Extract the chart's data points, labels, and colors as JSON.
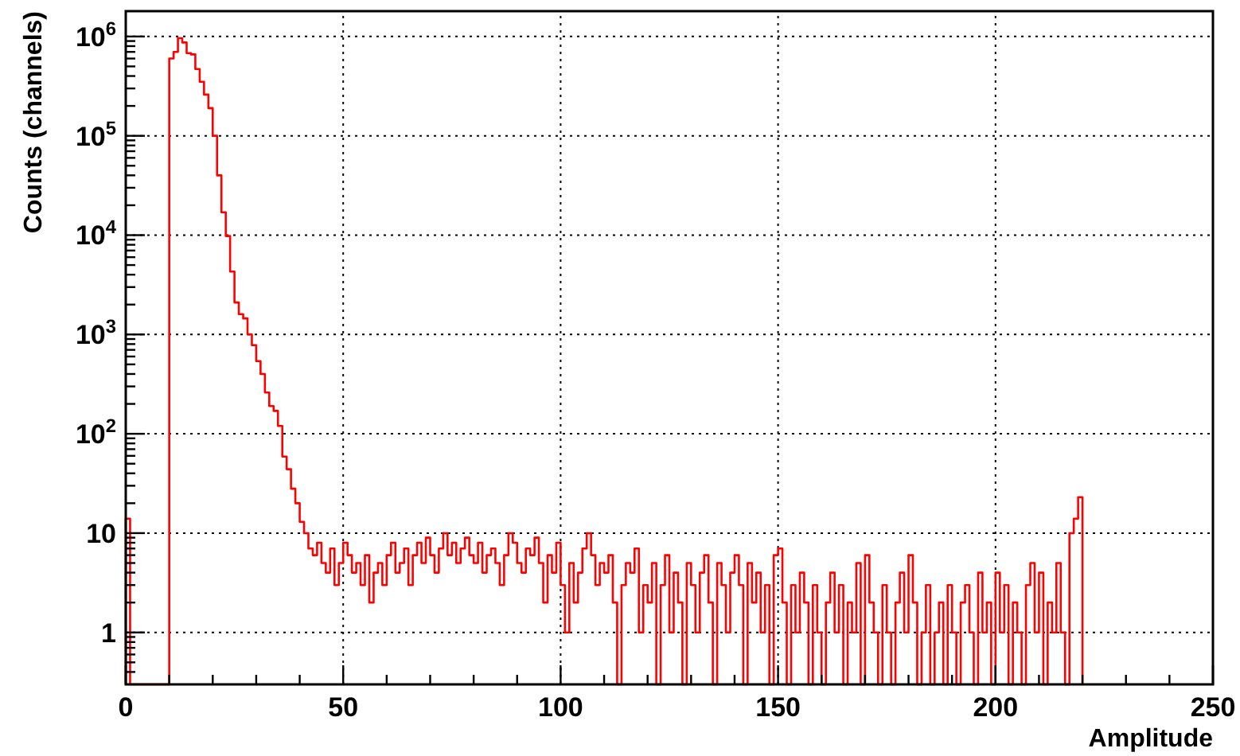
{
  "chart_data": {
    "type": "histogram",
    "xlabel": "Amplitude",
    "ylabel": "Counts (channels)",
    "color": "#ff0000",
    "log": "y",
    "grid": true,
    "xlim": [
      0,
      250
    ],
    "ylim": [
      0.3,
      1800000
    ],
    "xticks": [
      0,
      {
        "value": 10,
        "label": null
      },
      {
        "value": 20,
        "label": null
      },
      {
        "value": 30,
        "label": null
      },
      {
        "value": 40,
        "label": null
      },
      50,
      {
        "value": 60,
        "label": null
      },
      {
        "value": 70,
        "label": null
      },
      {
        "value": 80,
        "label": null
      },
      {
        "value": 90,
        "label": null
      },
      100,
      {
        "value": 110,
        "label": null
      },
      {
        "value": 120,
        "label": null
      },
      {
        "value": 130,
        "label": null
      },
      {
        "value": 140,
        "label": null
      },
      150,
      {
        "value": 160,
        "label": null
      },
      {
        "value": 170,
        "label": null
      },
      {
        "value": 180,
        "label": null
      },
      {
        "value": 190,
        "label": null
      },
      200,
      {
        "value": 210,
        "label": null
      },
      {
        "value": 220,
        "label": null
      },
      {
        "value": 230,
        "label": null
      },
      {
        "value": 240,
        "label": null
      },
      250
    ],
    "yticks": [
      {
        "value": 0.4,
        "label": null
      },
      {
        "value": 0.5,
        "label": null
      },
      {
        "value": 0.6,
        "label": null
      },
      {
        "value": 0.7,
        "label": null
      },
      {
        "value": 0.8,
        "label": null
      },
      {
        "value": 0.9,
        "label": null
      },
      1,
      {
        "value": 2,
        "label": null
      },
      {
        "value": 3,
        "label": null
      },
      {
        "value": 4,
        "label": null
      },
      {
        "value": 5,
        "label": null
      },
      {
        "value": 6,
        "label": null
      },
      {
        "value": 7,
        "label": null
      },
      {
        "value": 8,
        "label": null
      },
      {
        "value": 9,
        "label": null
      },
      10,
      {
        "value": 20,
        "label": null
      },
      {
        "value": 30,
        "label": null
      },
      {
        "value": 40,
        "label": null
      },
      {
        "value": 50,
        "label": null
      },
      {
        "value": 60,
        "label": null
      },
      {
        "value": 70,
        "label": null
      },
      {
        "value": 80,
        "label": null
      },
      {
        "value": 90,
        "label": null
      },
      {
        "value": 100,
        "label": "10$^{2}$"
      },
      {
        "value": 200,
        "label": null
      },
      {
        "value": 300,
        "label": null
      },
      {
        "value": 400,
        "label": null
      },
      {
        "value": 500,
        "label": null
      },
      {
        "value": 600,
        "label": null
      },
      {
        "value": 700,
        "label": null
      },
      {
        "value": 800,
        "label": null
      },
      {
        "value": 900,
        "label": null
      },
      {
        "value": 1000,
        "label": "10$^{3}$"
      },
      {
        "value": 2000,
        "label": null
      },
      {
        "value": 3000,
        "label": null
      },
      {
        "value": 4000,
        "label": null
      },
      {
        "value": 5000,
        "label": null
      },
      {
        "value": 6000,
        "label": null
      },
      {
        "value": 7000,
        "label": null
      },
      {
        "value": 8000,
        "label": null
      },
      {
        "value": 9000,
        "label": null
      },
      {
        "value": 10000,
        "label": "10$^{4}$"
      },
      {
        "value": 20000,
        "label": null
      },
      {
        "value": 30000,
        "label": null
      },
      {
        "value": 40000,
        "label": null
      },
      {
        "value": 50000,
        "label": null
      },
      {
        "value": 60000,
        "label": null
      },
      {
        "value": 70000,
        "label": null
      },
      {
        "value": 80000,
        "label": null
      },
      {
        "value": 90000,
        "label": null
      },
      {
        "value": 100000,
        "label": "10$^{5}$"
      },
      {
        "value": 200000,
        "label": null
      },
      {
        "value": 300000,
        "label": null
      },
      {
        "value": 400000,
        "label": null
      },
      {
        "value": 500000,
        "label": null
      },
      {
        "value": 600000,
        "label": null
      },
      {
        "value": 700000,
        "label": null
      },
      {
        "value": 800000,
        "label": null
      },
      {
        "value": 900000,
        "label": null
      },
      {
        "value": 1000000,
        "label": "10$^{6}$"
      }
    ],
    "bins": [
      0,
      1,
      2,
      3,
      4,
      5,
      6,
      7,
      8,
      9,
      10,
      11,
      12,
      13,
      14,
      15,
      16,
      17,
      18,
      19,
      20,
      21,
      22,
      23,
      24,
      25,
      26,
      27,
      28,
      29,
      30,
      31,
      32,
      33,
      34,
      35,
      36,
      37,
      38,
      39,
      40,
      41,
      42,
      43,
      44,
      45,
      46,
      47,
      48,
      49,
      50,
      51,
      52,
      53,
      54,
      55,
      56,
      57,
      58,
      59,
      60,
      61,
      62,
      63,
      64,
      65,
      66,
      67,
      68,
      69,
      70,
      71,
      72,
      73,
      74,
      75,
      76,
      77,
      78,
      79,
      80,
      81,
      82,
      83,
      84,
      85,
      86,
      87,
      88,
      89,
      90,
      91,
      92,
      93,
      94,
      95,
      96,
      97,
      98,
      99,
      100,
      101,
      102,
      103,
      104,
      105,
      106,
      107,
      108,
      109,
      110,
      111,
      112,
      113,
      114,
      115,
      116,
      117,
      118,
      119,
      120,
      121,
      122,
      123,
      124,
      125,
      126,
      127,
      128,
      129,
      130,
      131,
      132,
      133,
      134,
      135,
      136,
      137,
      138,
      139,
      140,
      141,
      142,
      143,
      144,
      145,
      146,
      147,
      148,
      149,
      150,
      151,
      152,
      153,
      154,
      155,
      156,
      157,
      158,
      159,
      160,
      161,
      162,
      163,
      164,
      165,
      166,
      167,
      168,
      169,
      170,
      171,
      172,
      173,
      174,
      175,
      176,
      177,
      178,
      179,
      180,
      181,
      182,
      183,
      184,
      185,
      186,
      187,
      188,
      189,
      190,
      191,
      192,
      193,
      194,
      195,
      196,
      197,
      198,
      199,
      200,
      201,
      202,
      203,
      204,
      205,
      206,
      207,
      208,
      209,
      210,
      211,
      212,
      213,
      214,
      215,
      216,
      217,
      218,
      219,
      220
    ],
    "values": [
      14,
      null,
      null,
      null,
      null,
      null,
      null,
      null,
      null,
      null,
      600000,
      700000,
      960000,
      870000,
      680000,
      660000,
      470000,
      350000,
      260000,
      190000,
      100000,
      40000,
      17000,
      9800,
      4300,
      2100,
      1600,
      1450,
      1000,
      780,
      540,
      400,
      260,
      190,
      170,
      120,
      59,
      44,
      28,
      20,
      13,
      10,
      7,
      6,
      8,
      5,
      4,
      7,
      3,
      5,
      8,
      6,
      4,
      5,
      3,
      6,
      2,
      4,
      5,
      3,
      6,
      8,
      4,
      5,
      7,
      3,
      6,
      8,
      5,
      9,
      6,
      4,
      7,
      10,
      6,
      8,
      5,
      7,
      9,
      6,
      5,
      8,
      4,
      6,
      7,
      5,
      3,
      6,
      10,
      8,
      5,
      4,
      7,
      6,
      9,
      5,
      2,
      6,
      4,
      8,
      3,
      1,
      5,
      2,
      4,
      7,
      10,
      6,
      3,
      5,
      4,
      6,
      2,
      null,
      3,
      5,
      4,
      7,
      1,
      3,
      2,
      5,
      null,
      3,
      6,
      1,
      4,
      2,
      null,
      5,
      3,
      1,
      4,
      6,
      2,
      null,
      5,
      3,
      1,
      4,
      6,
      3,
      null,
      5,
      2,
      4,
      1,
      3,
      null,
      6,
      7,
      2,
      null,
      3,
      1,
      4,
      2,
      null,
      3,
      1,
      null,
      2,
      4,
      1,
      3,
      null,
      2,
      1,
      5,
      null,
      6,
      2,
      1,
      null,
      3,
      1,
      null,
      2,
      4,
      1,
      6,
      2,
      null,
      1,
      3,
      null,
      1,
      2,
      null,
      3,
      1,
      null,
      2,
      3,
      1,
      null,
      4,
      1,
      2,
      null,
      4,
      1,
      3,
      null,
      2,
      1,
      null,
      3,
      5,
      1,
      4,
      null,
      2,
      1,
      5,
      1,
      null,
      10,
      14,
      23
    ]
  }
}
